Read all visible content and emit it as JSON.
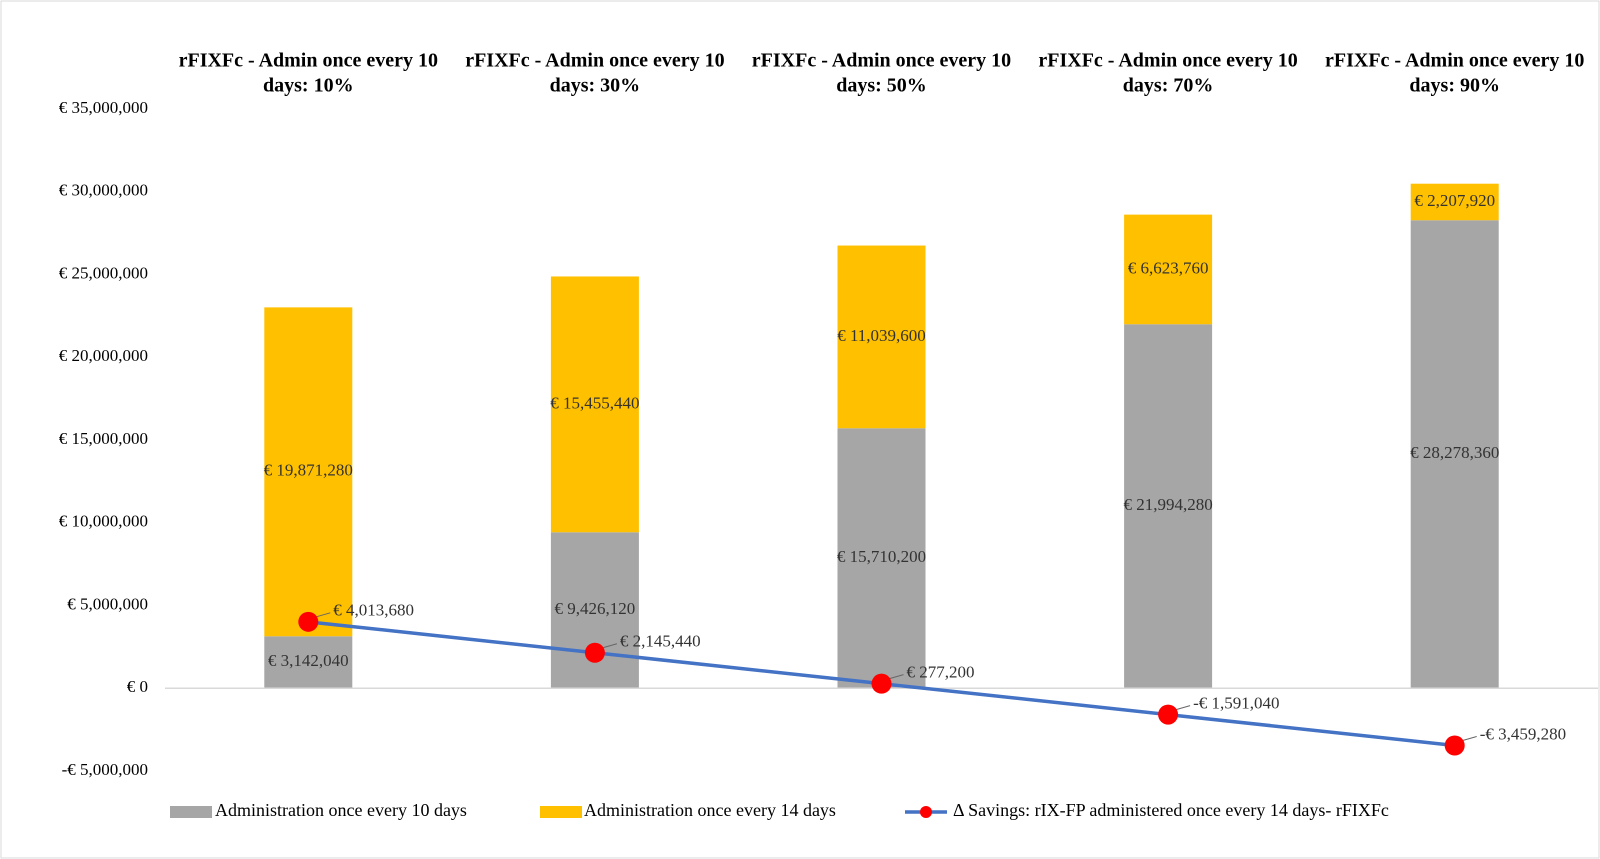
{
  "chart_data": {
    "type": "bar",
    "stacked": true,
    "categories": [
      "rFIXFc - Admin once every 10 days: 10%",
      "rFIXFc - Admin once every 10 days: 30%",
      "rFIXFc - Admin once every 10 days: 50%",
      "rFIXFc - Admin once every 10 days: 70%",
      "rFIXFc - Admin once every 10 days: 90%"
    ],
    "category_lines": [
      [
        "rFIXFc - Admin once every 10",
        "days: 10%"
      ],
      [
        "rFIXFc - Admin once every 10",
        "days: 30%"
      ],
      [
        "rFIXFc - Admin once every 10",
        "days: 50%"
      ],
      [
        "rFIXFc - Admin once every 10",
        "days: 70%"
      ],
      [
        "rFIXFc - Admin once every 10",
        "days: 90%"
      ]
    ],
    "series": [
      {
        "name": "Administration once every 10 days",
        "kind": "bar",
        "color": "#a6a6a6",
        "values": [
          3142040,
          9426120,
          15710200,
          21994280,
          28278360
        ],
        "labels": [
          "€ 3,142,040",
          "€ 9,426,120",
          "€ 15,710,200",
          "€ 21,994,280",
          "€ 28,278,360"
        ]
      },
      {
        "name": "Administration once every 14 days",
        "kind": "bar",
        "color": "#ffc000",
        "values": [
          19871280,
          15455440,
          11039600,
          6623760,
          2207920
        ],
        "labels": [
          "€ 19,871,280",
          "€ 15,455,440",
          "€ 11,039,600",
          "€ 6,623,760",
          "€ 2,207,920"
        ]
      },
      {
        "name": "Δ Savings: rIX-FP administered once every 14 days- rFIXFc",
        "kind": "line",
        "color": "#4472c4",
        "marker_color": "#ff0000",
        "values": [
          4013680,
          2145440,
          277200,
          -1591040,
          -3459280
        ],
        "labels": [
          "€ 4,013,680",
          "€ 2,145,440",
          "€ 277,200",
          "-€ 1,591,040",
          "-€ 3,459,280"
        ]
      }
    ],
    "ylim": [
      -5000000,
      35000000
    ],
    "yticks": [
      -5000000,
      0,
      5000000,
      10000000,
      15000000,
      20000000,
      25000000,
      30000000,
      35000000
    ],
    "ytick_labels": [
      "-€ 5,000,000",
      "€ 0",
      "€ 5,000,000",
      "€ 10,000,000",
      "€ 15,000,000",
      "€ 20,000,000",
      "€ 25,000,000",
      "€ 30,000,000",
      "€ 35,000,000"
    ],
    "grid": false,
    "legend_position": "bottom"
  }
}
